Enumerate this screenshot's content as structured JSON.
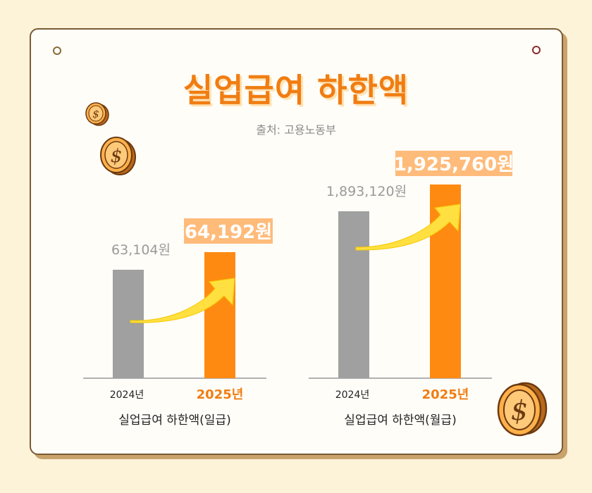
{
  "title": "실업급여 하한액",
  "source": "출처: 고용노동부",
  "colors": {
    "prev_bar": "#a0a0a0",
    "curr_bar": "#ff8a12",
    "accent": "#f07d12",
    "label_box": "#ffbb7a",
    "arrow": "#ffe040"
  },
  "icons": [
    "dollar-coin-icon",
    "growth-arrow-icon"
  ],
  "chart_data": [
    {
      "type": "bar",
      "title": "실업급여 하한액(일급)",
      "categories": [
        "2024년",
        "2025년"
      ],
      "values": [
        63104,
        64192
      ],
      "value_labels": [
        "63,104원",
        "64,192원"
      ],
      "unit": "원"
    },
    {
      "type": "bar",
      "title": "실업급여 하한액(월급)",
      "categories": [
        "2024년",
        "2025년"
      ],
      "values": [
        1893120,
        1925760
      ],
      "value_labels": [
        "1,893,120원",
        "1,925,760원"
      ],
      "unit": "원"
    }
  ]
}
